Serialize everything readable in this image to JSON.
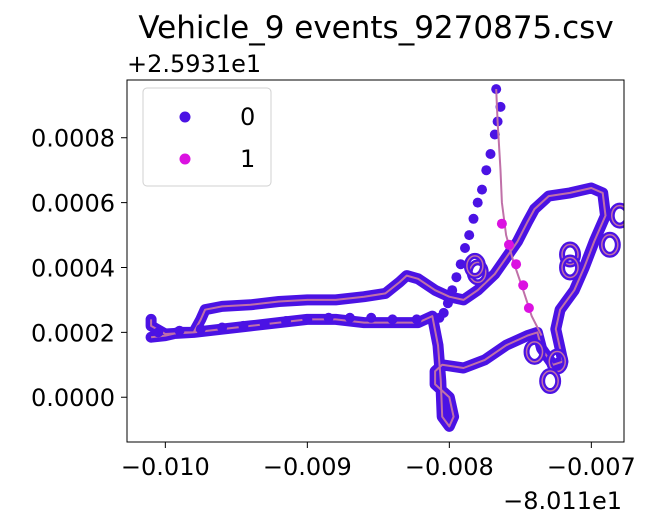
{
  "chart_data": {
    "type": "scatter",
    "title": "Vehicle_9 events_9270875.csv",
    "xlabel": "",
    "ylabel": "",
    "x_offset_label": "−8.011e1",
    "y_offset_label": "+2.5931e1",
    "xlim": [
      -0.01027,
      -0.00677
    ],
    "ylim": [
      -0.000138,
      0.000978
    ],
    "x_ticks": [
      -0.01,
      -0.009,
      -0.008,
      -0.007
    ],
    "x_tick_labels": [
      "−0.010",
      "−0.009",
      "−0.008",
      "−0.007"
    ],
    "y_ticks": [
      0.0,
      0.0002,
      0.0004,
      0.0006,
      0.0008
    ],
    "y_tick_labels": [
      "0.0000",
      "0.0002",
      "0.0004",
      "0.0006",
      "0.0008"
    ],
    "grid": false,
    "legend_position": "upper left",
    "line_color": "#c070a8",
    "series": [
      {
        "name": "0",
        "color": "#4b12e4",
        "path": [
          [
            -0.0101,
            0.000185
          ],
          [
            -0.01,
            0.00019
          ],
          [
            -0.0099,
            0.0002
          ],
          [
            -0.0098,
            0.0002
          ],
          [
            -0.00975,
            0.00024
          ],
          [
            -0.00972,
            0.00027
          ],
          [
            -0.0096,
            0.00028
          ],
          [
            -0.0094,
            0.000285
          ],
          [
            -0.0092,
            0.000295
          ],
          [
            -0.009,
            0.0003
          ],
          [
            -0.0088,
            0.0003
          ],
          [
            -0.0086,
            0.00031
          ],
          [
            -0.00845,
            0.00032
          ],
          [
            -0.00835,
            0.000355
          ],
          [
            -0.0083,
            0.000375
          ],
          [
            -0.00822,
            0.000365
          ],
          [
            -0.0081,
            0.00033
          ],
          [
            -0.008,
            0.00031
          ],
          [
            -0.0079,
            0.0003
          ],
          [
            -0.0078,
            0.00033
          ],
          [
            -0.00768,
            0.00038
          ],
          [
            -0.0076,
            0.00043
          ],
          [
            -0.00752,
            0.00048
          ],
          [
            -0.00745,
            0.00054
          ],
          [
            -0.0074,
            0.00058
          ],
          [
            -0.0073,
            0.00062
          ],
          [
            -0.00715,
            0.00063
          ],
          [
            -0.007,
            0.000645
          ],
          [
            -0.00692,
            0.00063
          ],
          [
            -0.0069,
            0.00056
          ],
          [
            -0.00698,
            0.00048
          ],
          [
            -0.00705,
            0.0004
          ],
          [
            -0.00712,
            0.00033
          ],
          [
            -0.00722,
            0.00027
          ],
          [
            -0.00725,
            0.00021
          ],
          [
            -0.00722,
            0.00015
          ],
          [
            -0.0072,
            0.00011
          ],
          [
            -0.00727,
            0.0001
          ],
          [
            -0.00735,
            0.00015
          ],
          [
            -0.00738,
            0.0002
          ],
          [
            -0.00745,
            0.00019
          ],
          [
            -0.0076,
            0.00016
          ],
          [
            -0.00775,
            0.000115
          ],
          [
            -0.0079,
            9e-05
          ],
          [
            -0.00805,
            0.0001
          ],
          [
            -0.0081,
            8e-05
          ],
          [
            -0.0081,
            4e-05
          ],
          [
            -0.008,
            0.0
          ],
          [
            -0.00797,
            -6e-05
          ],
          [
            -0.008,
            -9e-05
          ],
          [
            -0.00805,
            -6e-05
          ],
          [
            -0.00806,
            5e-05
          ],
          [
            -0.00808,
            0.00016
          ],
          [
            -0.00812,
            0.00025
          ],
          [
            -0.00822,
            0.00023
          ],
          [
            -0.0084,
            0.00023
          ],
          [
            -0.0086,
            0.00023
          ],
          [
            -0.0088,
            0.00024
          ],
          [
            -0.009,
            0.00024
          ],
          [
            -0.0092,
            0.00023
          ],
          [
            -0.0094,
            0.00022
          ],
          [
            -0.0096,
            0.00021
          ],
          [
            -0.0098,
            0.0002
          ],
          [
            -0.01,
            0.000195
          ],
          [
            -0.0101,
            0.00022
          ],
          [
            -0.0101,
            0.00024
          ]
        ],
        "bumps": [
          [
            -0.0068,
            0.00056
          ],
          [
            -0.00687,
            0.00047
          ],
          [
            -0.00715,
            0.00044
          ],
          [
            -0.00715,
            0.0004
          ],
          [
            -0.00724,
            0.00011
          ],
          [
            -0.00729,
            5e-05
          ],
          [
            -0.0074,
            0.00014
          ],
          [
            -0.0078,
            0.000385
          ],
          [
            -0.00782,
            0.000405
          ]
        ],
        "trail": [
          [
            -0.00767,
            0.00095
          ],
          [
            -0.00764,
            0.000895
          ],
          [
            -0.00766,
            0.00085
          ],
          [
            -0.00768,
            0.00081
          ],
          [
            -0.00771,
            0.00075
          ],
          [
            -0.00774,
            0.0007
          ],
          [
            -0.00777,
            0.00064
          ],
          [
            -0.0078,
            0.0006
          ],
          [
            -0.00783,
            0.00055
          ],
          [
            -0.00786,
            0.0005
          ],
          [
            -0.00789,
            0.00046
          ],
          [
            -0.00792,
            0.00041
          ],
          [
            -0.00795,
            0.00037
          ],
          [
            -0.00798,
            0.00033
          ],
          [
            -0.00801,
            0.00029
          ],
          [
            -0.00804,
            0.00026
          ],
          [
            -0.00807,
            0.000245
          ],
          [
            -0.00823,
            0.00024
          ],
          [
            -0.0084,
            0.00024
          ],
          [
            -0.00855,
            0.000245
          ],
          [
            -0.0087,
            0.000245
          ],
          [
            -0.00885,
            0.000245
          ],
          [
            -0.009,
            0.00024
          ],
          [
            -0.00915,
            0.000235
          ],
          [
            -0.0093,
            0.000225
          ],
          [
            -0.00945,
            0.00022
          ],
          [
            -0.0096,
            0.000215
          ],
          [
            -0.00975,
            0.00021
          ],
          [
            -0.0099,
            0.000205
          ],
          [
            -0.01005,
            0.0002
          ]
        ]
      },
      {
        "name": "1",
        "color": "#db11e1",
        "points": [
          [
            -0.00763,
            0.000535
          ],
          [
            -0.00758,
            0.00047
          ],
          [
            -0.00753,
            0.00041
          ],
          [
            -0.00748,
            0.000345
          ],
          [
            -0.00744,
            0.000275
          ]
        ]
      }
    ],
    "line_path": [
      [
        -0.00767,
        0.00095
      ],
      [
        -0.00766,
        0.00085
      ],
      [
        -0.00764,
        0.0007
      ],
      [
        -0.00763,
        0.0006
      ],
      [
        -0.0076,
        0.0005
      ],
      [
        -0.00755,
        0.00042
      ],
      [
        -0.00748,
        0.00033
      ],
      [
        -0.00742,
        0.00025
      ],
      [
        -0.00735,
        0.00019
      ]
    ]
  }
}
